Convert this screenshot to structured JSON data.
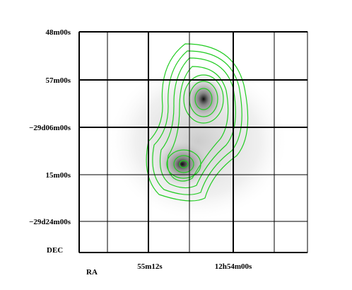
{
  "axes": {
    "y_labels": [
      "48m00s",
      "57m00s",
      "−29d06m00s",
      "15m00s",
      "−29d24m00s"
    ],
    "x_labels": [
      "55m12s",
      "12h54m00s"
    ],
    "y_name": "DEC",
    "x_name": "RA"
  }
}
